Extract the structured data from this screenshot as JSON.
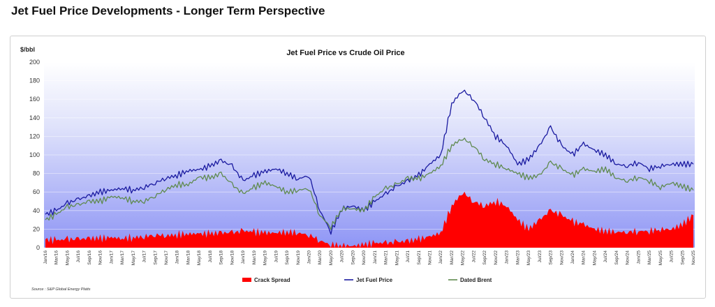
{
  "page": {
    "title": "Jet Fuel Price Developments - Longer Term Perspective"
  },
  "chart_data": {
    "type": "line",
    "title": "Jet Fuel Price vs Crude Oil Price",
    "ylabel": "$/bbl",
    "xlabel": "",
    "ylim": [
      0,
      200
    ],
    "yticks": [
      0,
      20,
      40,
      60,
      80,
      100,
      120,
      140,
      160,
      180,
      200
    ],
    "grid": true,
    "legend_position": "bottom",
    "source": "Source : S&P Global Energy Platts",
    "x": [
      "Jan/16",
      "Mar/16",
      "May/16",
      "Jul/16",
      "Sep/16",
      "Nov/16",
      "Jan/17",
      "Mar/17",
      "May/17",
      "Jul/17",
      "Sep/17",
      "Nov/17",
      "Jan/18",
      "Mar/18",
      "May/18",
      "Jul/18",
      "Sep/18",
      "Nov/18",
      "Jan/19",
      "Mar/19",
      "May/19",
      "Jul/19",
      "Sep/19",
      "Nov/19",
      "Jan/20",
      "Mar/20",
      "May/20",
      "Jul/20",
      "Sep/20",
      "Nov/20",
      "Jan/21",
      "Mar/21",
      "May/21",
      "Jul/21",
      "Sep/21",
      "Nov/21",
      "Jan/22",
      "Mar/22",
      "May/22",
      "Jul/22",
      "Sep/22",
      "Nov/22",
      "Jan/23",
      "Mar/23",
      "May/23",
      "Jul/23",
      "Sep/23",
      "Nov/23",
      "Jan/24",
      "Mar/24",
      "May/24",
      "Jul/24",
      "Sep/24",
      "Nov/24",
      "Jan/25",
      "Mar/25",
      "May/25",
      "Jul/25",
      "Sep/25",
      "Nov/25"
    ],
    "series": [
      {
        "name": "Crack Spread",
        "kind": "area",
        "color": "#ff0000",
        "values": [
          9,
          8,
          9,
          9,
          10,
          10,
          11,
          10,
          11,
          12,
          14,
          13,
          14,
          15,
          15,
          15,
          16,
          16,
          18,
          17,
          16,
          16,
          17,
          16,
          14,
          8,
          3,
          2,
          2,
          3,
          5,
          5,
          6,
          7,
          9,
          12,
          16,
          45,
          60,
          50,
          45,
          50,
          45,
          30,
          20,
          30,
          40,
          35,
          28,
          25,
          20,
          18,
          17,
          17,
          18,
          18,
          20,
          20,
          25,
          35
        ]
      },
      {
        "name": "Jet Fuel Price",
        "kind": "line",
        "color": "#1a1aa0",
        "values": [
          36,
          40,
          48,
          52,
          56,
          60,
          62,
          64,
          62,
          65,
          70,
          75,
          78,
          83,
          84,
          88,
          94,
          88,
          72,
          78,
          82,
          85,
          80,
          74,
          78,
          40,
          17,
          42,
          45,
          40,
          50,
          58,
          66,
          72,
          78,
          90,
          100,
          155,
          170,
          160,
          140,
          120,
          110,
          90,
          95,
          110,
          130,
          110,
          100,
          112,
          105,
          100,
          90,
          88,
          92,
          85,
          88,
          90,
          90,
          90
        ]
      },
      {
        "name": "Dated Brent",
        "kind": "line",
        "color": "#5f8a4f",
        "values": [
          30,
          36,
          44,
          46,
          50,
          50,
          55,
          54,
          50,
          50,
          56,
          63,
          68,
          68,
          76,
          75,
          80,
          68,
          58,
          65,
          70,
          66,
          60,
          62,
          64,
          35,
          22,
          42,
          42,
          40,
          55,
          64,
          68,
          75,
          74,
          80,
          88,
          110,
          118,
          110,
          95,
          90,
          85,
          80,
          75,
          78,
          92,
          85,
          78,
          85,
          82,
          85,
          75,
          72,
          76,
          72,
          65,
          70,
          66,
          62
        ]
      }
    ]
  }
}
